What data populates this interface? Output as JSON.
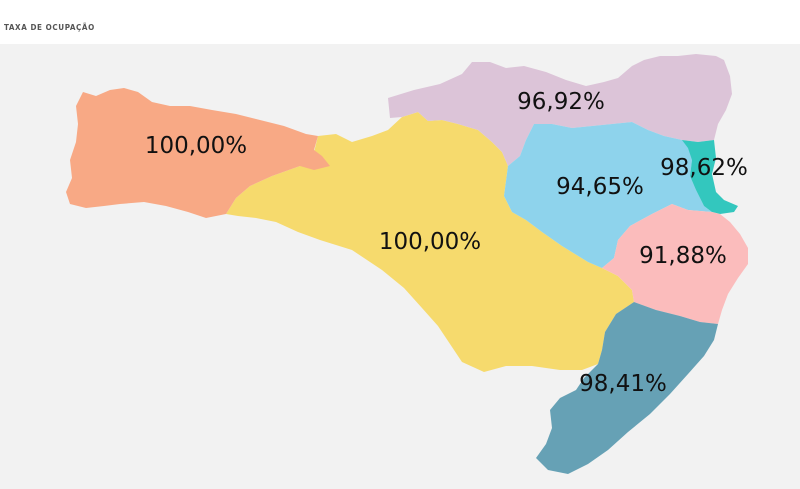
{
  "header": {
    "title": "TAXA DE OCUPAÇÃO"
  },
  "regions": [
    {
      "id": "oeste",
      "label": "100,00%",
      "color": "#f8a985"
    },
    {
      "id": "meio-oeste-serra",
      "label": "100,00%",
      "color": "#f6da6d"
    },
    {
      "id": "norte",
      "label": "96,92%",
      "color": "#dcc4d8"
    },
    {
      "id": "vale-itajai",
      "label": "94,65%",
      "color": "#8ed3ec"
    },
    {
      "id": "foz-itajai",
      "label": "98,62%",
      "color": "#33c7be"
    },
    {
      "id": "grande-florianopolis",
      "label": "91,88%",
      "color": "#fbbcbc"
    },
    {
      "id": "sul",
      "label": "98,41%",
      "color": "#66a1b5"
    }
  ]
}
